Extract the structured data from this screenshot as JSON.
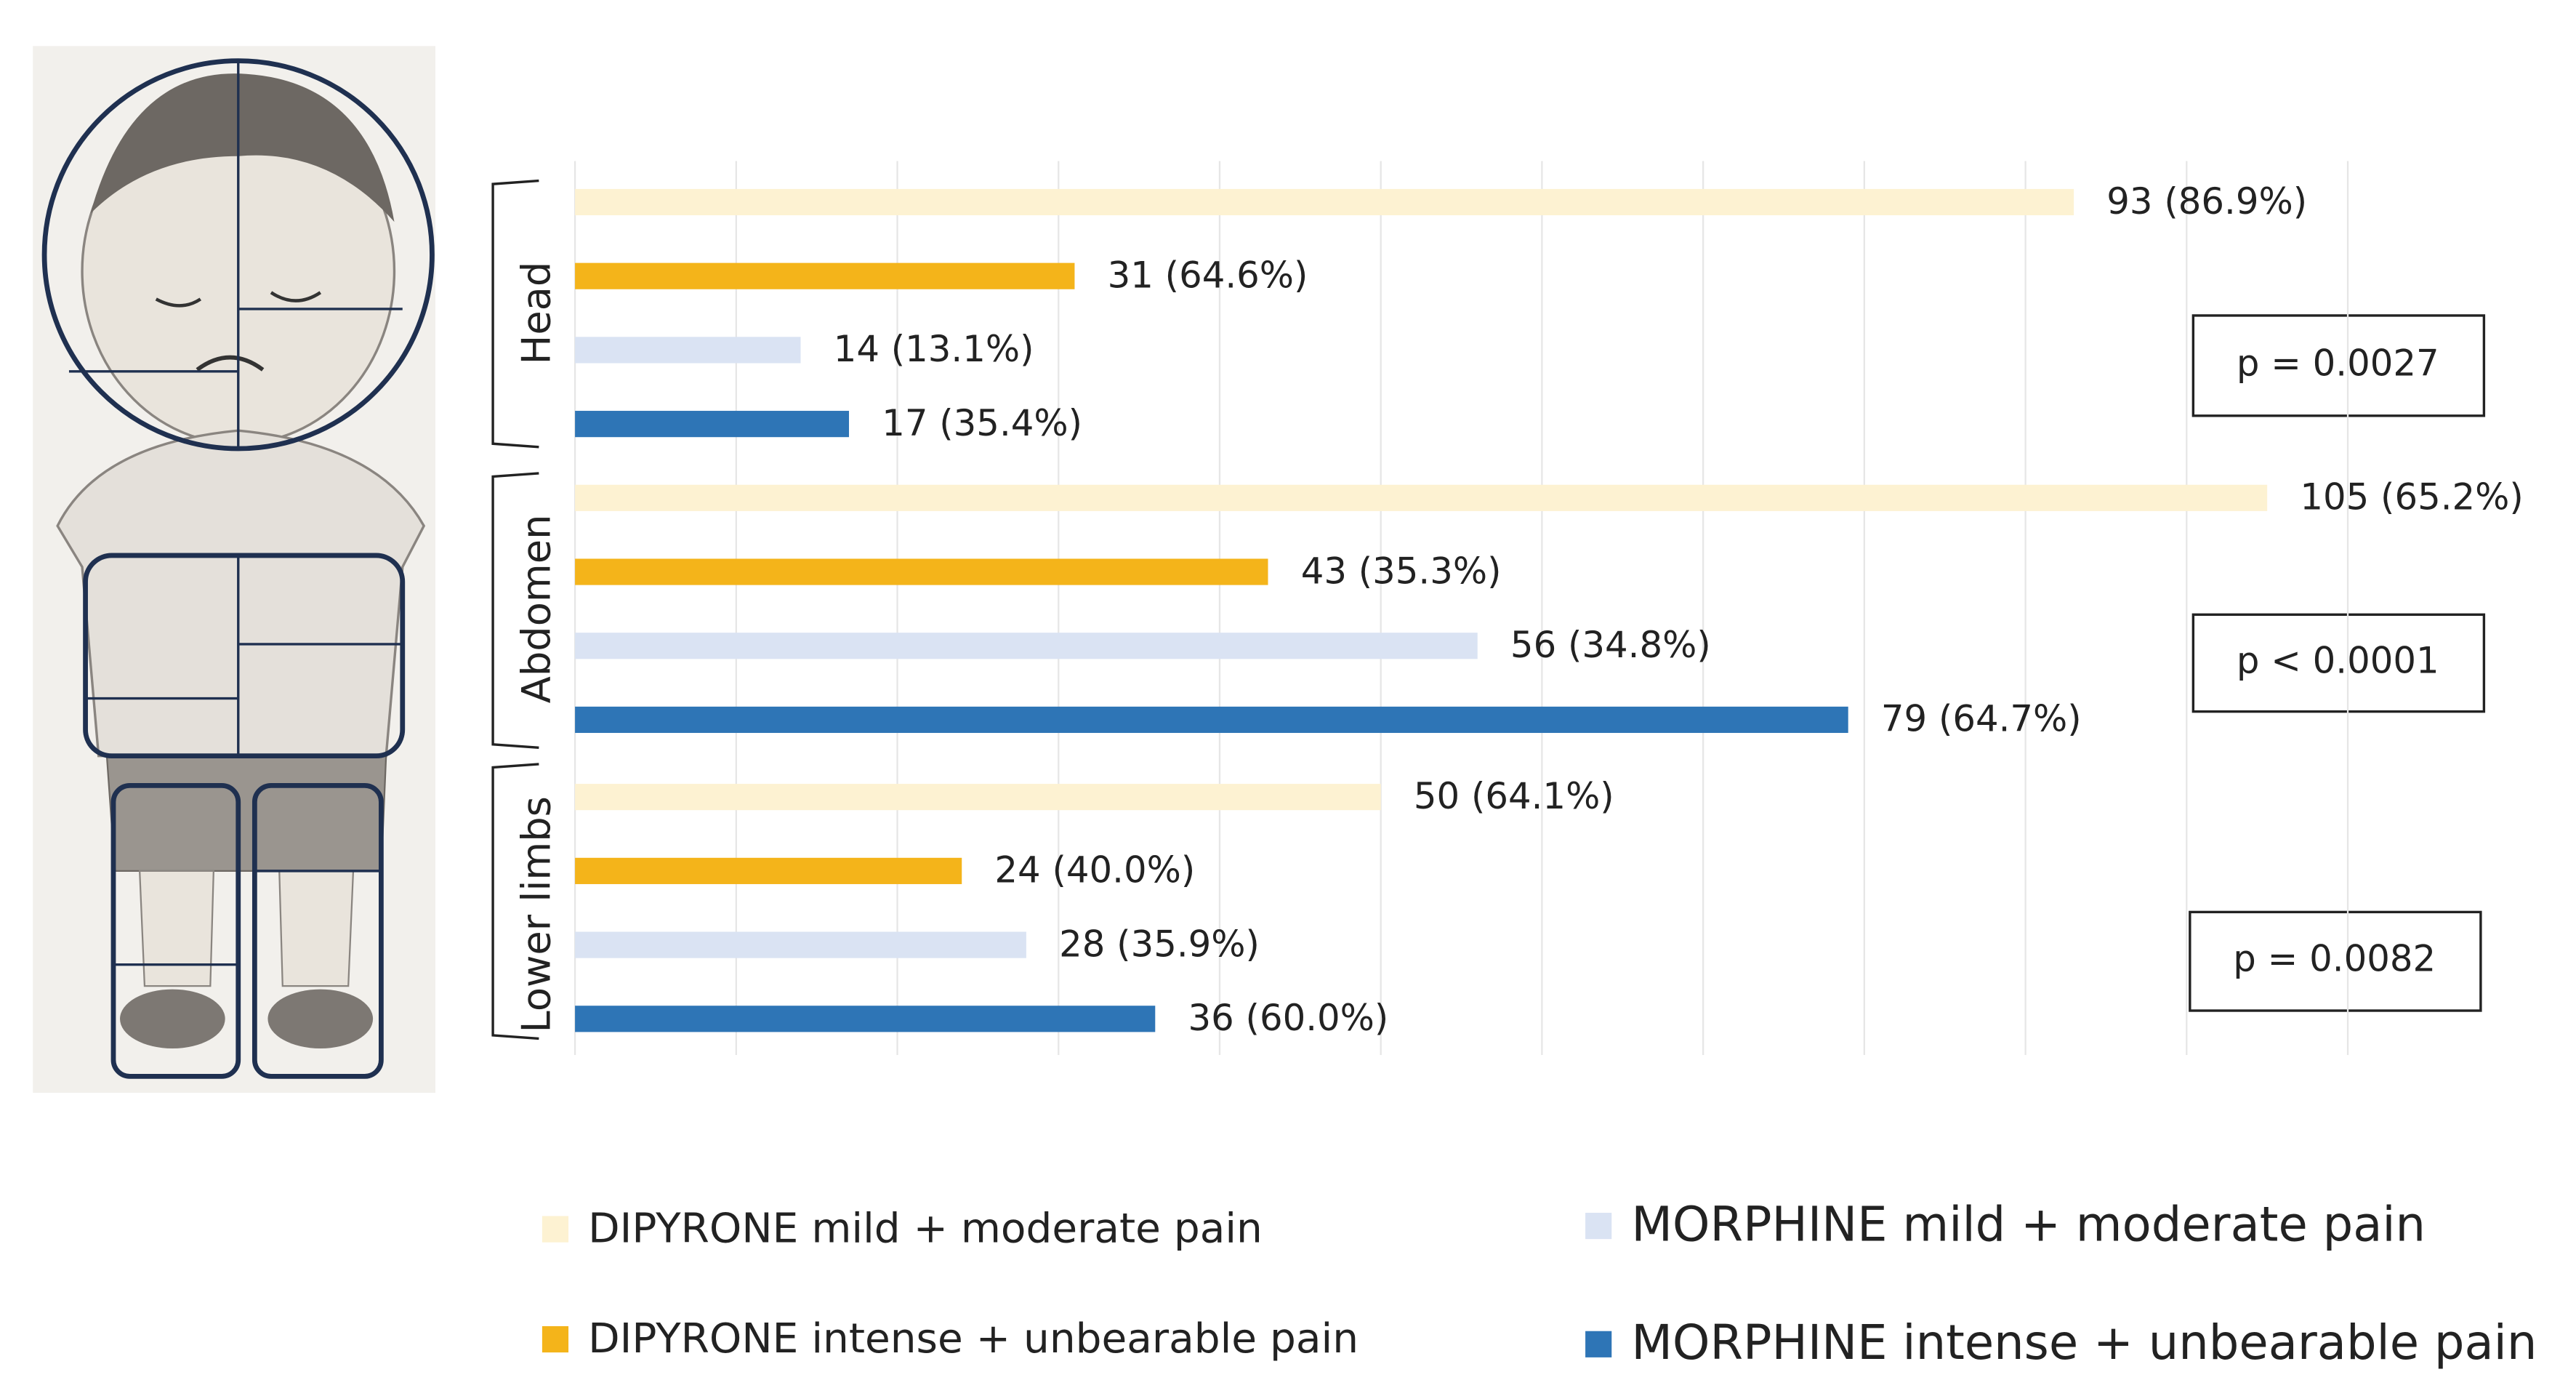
{
  "chart_data": {
    "type": "bar",
    "orientation": "horizontal",
    "categories": [
      "Head",
      "Abdomen",
      "Lower limbs"
    ],
    "series": [
      {
        "name": "DIPYRONE mild + moderate pain",
        "color": "#fdf2d2",
        "values": [
          93,
          105,
          50
        ],
        "value_labels": [
          "93 (86.9%)",
          "105 (65.2%)",
          "50 (64.1%)"
        ]
      },
      {
        "name": "DIPYRONE intense + unbearable pain",
        "color": "#f4b41a",
        "values": [
          31,
          43,
          24
        ],
        "value_labels": [
          "31 (64.6%)",
          "43 (35.3%)",
          "24 (40.0%)"
        ]
      },
      {
        "name": "MORPHINE mild + moderate pain",
        "color": "#dae3f3",
        "values": [
          14,
          56,
          28
        ],
        "value_labels": [
          "14 (13.1%)",
          "56 (34.8%)",
          "28 (35.9%)"
        ]
      },
      {
        "name": "MORPHINE intense + unbearable pain",
        "color": "#2e75b6",
        "values": [
          17,
          79,
          36
        ],
        "value_labels": [
          "17 (35.4%)",
          "79 (64.7%)",
          "36 (60.0%)"
        ]
      }
    ],
    "annotations": [
      "p = 0.0027",
      "p < 0.0001",
      "p = 0.0082"
    ],
    "xlim": [
      0,
      110
    ],
    "xticks": [
      0,
      10,
      20,
      30,
      40,
      50,
      60,
      70,
      80,
      90,
      100,
      110
    ],
    "grid": true
  }
}
